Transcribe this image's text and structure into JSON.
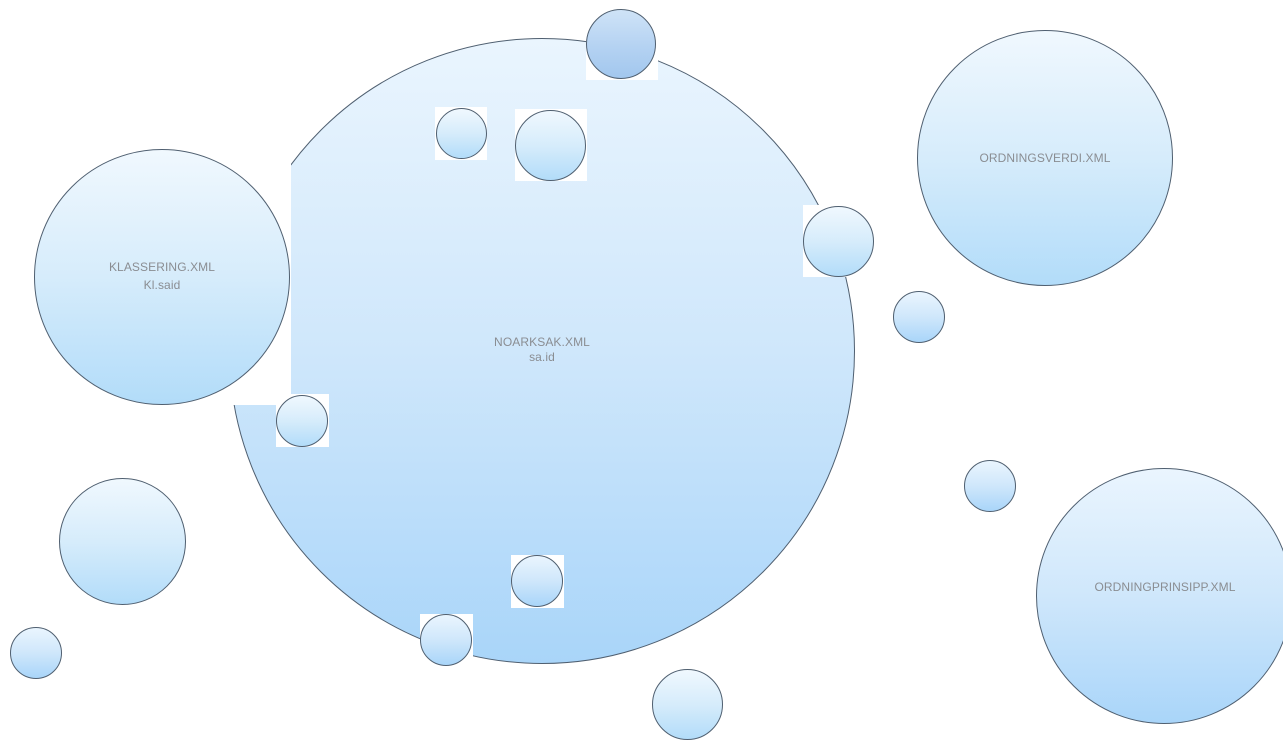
{
  "nodes": {
    "noarksak": {
      "title": "NOARKSAK.XML",
      "key": "sa.id"
    },
    "klassering": {
      "title": "KLASSERING.XML",
      "key": "Kl.said"
    },
    "ordningsverdi": {
      "title": "ORDNINGSVERDI.XML"
    },
    "ordningprinsipp": {
      "title": "ORDNINGPRINSIPP.XML"
    }
  }
}
